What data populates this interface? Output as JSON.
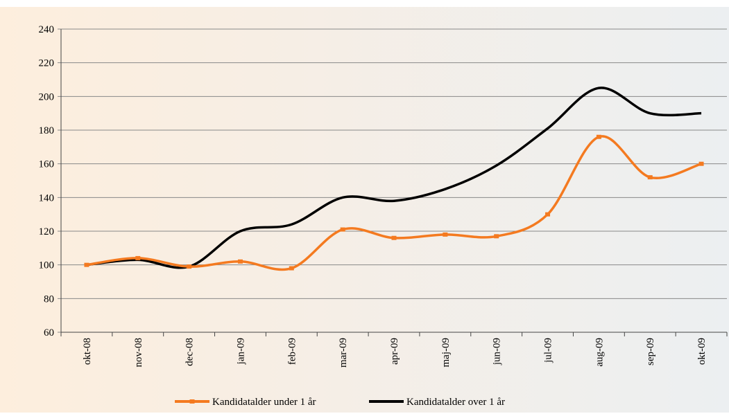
{
  "chart_data": {
    "type": "line",
    "categories": [
      "okt-08",
      "nov-08",
      "dec-08",
      "jan-09",
      "feb-09",
      "mar-09",
      "apr-09",
      "maj-09",
      "jun-09",
      "jul-09",
      "aug-09",
      "sep-09",
      "okt-09"
    ],
    "series": [
      {
        "name": "Kandidatalder under 1 år",
        "color": "#f47a20",
        "values": [
          100,
          104,
          99,
          102,
          98,
          121,
          116,
          118,
          117,
          130,
          176,
          152,
          160
        ]
      },
      {
        "name": "Kandidatalder over 1 år",
        "color": "#000000",
        "values": [
          100,
          103,
          99,
          120,
          124,
          140,
          138,
          145,
          159,
          181,
          205,
          190,
          190
        ]
      }
    ],
    "ylim": [
      60,
      240
    ],
    "yticks": [
      60,
      80,
      100,
      120,
      140,
      160,
      180,
      200,
      220,
      240
    ],
    "grid": true,
    "legend": "bottom"
  }
}
